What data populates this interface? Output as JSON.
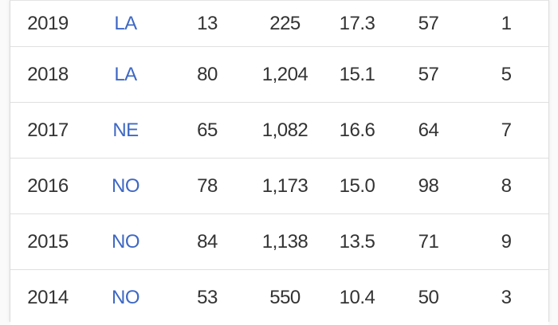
{
  "page": {
    "background_color": "#fafafa",
    "card_background": "#ffffff",
    "divider_color": "#e0e0e0",
    "text_color": "#333333",
    "link_color": "#3e68c4"
  },
  "stats_table": {
    "rows": [
      {
        "year": "2019",
        "team": "LA",
        "stats": [
          "13",
          "225",
          "17.3",
          "57",
          "1"
        ]
      },
      {
        "year": "2018",
        "team": "LA",
        "stats": [
          "80",
          "1,204",
          "15.1",
          "57",
          "5"
        ]
      },
      {
        "year": "2017",
        "team": "NE",
        "stats": [
          "65",
          "1,082",
          "16.6",
          "64",
          "7"
        ]
      },
      {
        "year": "2016",
        "team": "NO",
        "stats": [
          "78",
          "1,173",
          "15.0",
          "98",
          "8"
        ]
      },
      {
        "year": "2015",
        "team": "NO",
        "stats": [
          "84",
          "1,138",
          "13.5",
          "71",
          "9"
        ]
      },
      {
        "year": "2014",
        "team": "NO",
        "stats": [
          "53",
          "550",
          "10.4",
          "50",
          "3"
        ]
      }
    ]
  }
}
